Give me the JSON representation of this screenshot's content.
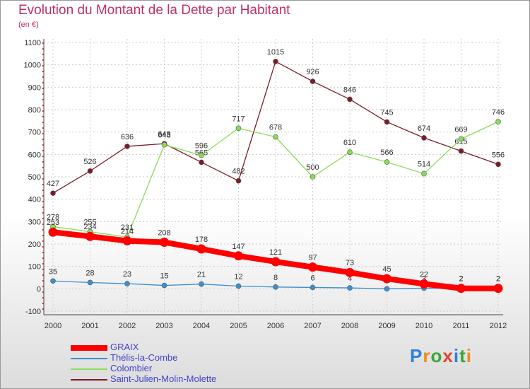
{
  "title": "Evolution du Montant de la Dette par Habitant",
  "subtitle": "(en €)",
  "logo": "Proxiti",
  "chart_data": {
    "type": "line",
    "title": "Evolution du Montant de la Dette par Habitant",
    "ylabel": "(en €)",
    "ylim": [
      -100,
      1100
    ],
    "yticks": [
      -100,
      0,
      100,
      200,
      300,
      400,
      500,
      600,
      700,
      800,
      900,
      1000,
      1100
    ],
    "grid": true,
    "legend": "bottom-left",
    "categories": [
      "2000",
      "2001",
      "2002",
      "2003",
      "2004",
      "2005",
      "2006",
      "2007",
      "2008",
      "2009",
      "2010",
      "2011",
      "2012"
    ],
    "series": [
      {
        "name": "GRAIX",
        "color": "#ff0000",
        "values": [
          253,
          234,
          214,
          208,
          178,
          147,
          121,
          97,
          73,
          45,
          22,
          2,
          2
        ]
      },
      {
        "name": "Thélis-la-Combe",
        "color": "#3d8fd0",
        "values": [
          35,
          28,
          23,
          15,
          21,
          12,
          8,
          6,
          4,
          0,
          3,
          2,
          2
        ]
      },
      {
        "name": "Colombier",
        "color": "#88dd55",
        "values": [
          278,
          255,
          231,
          643,
          596,
          717,
          678,
          500,
          610,
          566,
          514,
          669,
          746
        ]
      },
      {
        "name": "Saint-Julien-Molin-Molette",
        "color": "#7a1c2a",
        "values": [
          427,
          526,
          636,
          648,
          565,
          482,
          1015,
          926,
          846,
          745,
          674,
          615,
          556
        ]
      }
    ]
  }
}
